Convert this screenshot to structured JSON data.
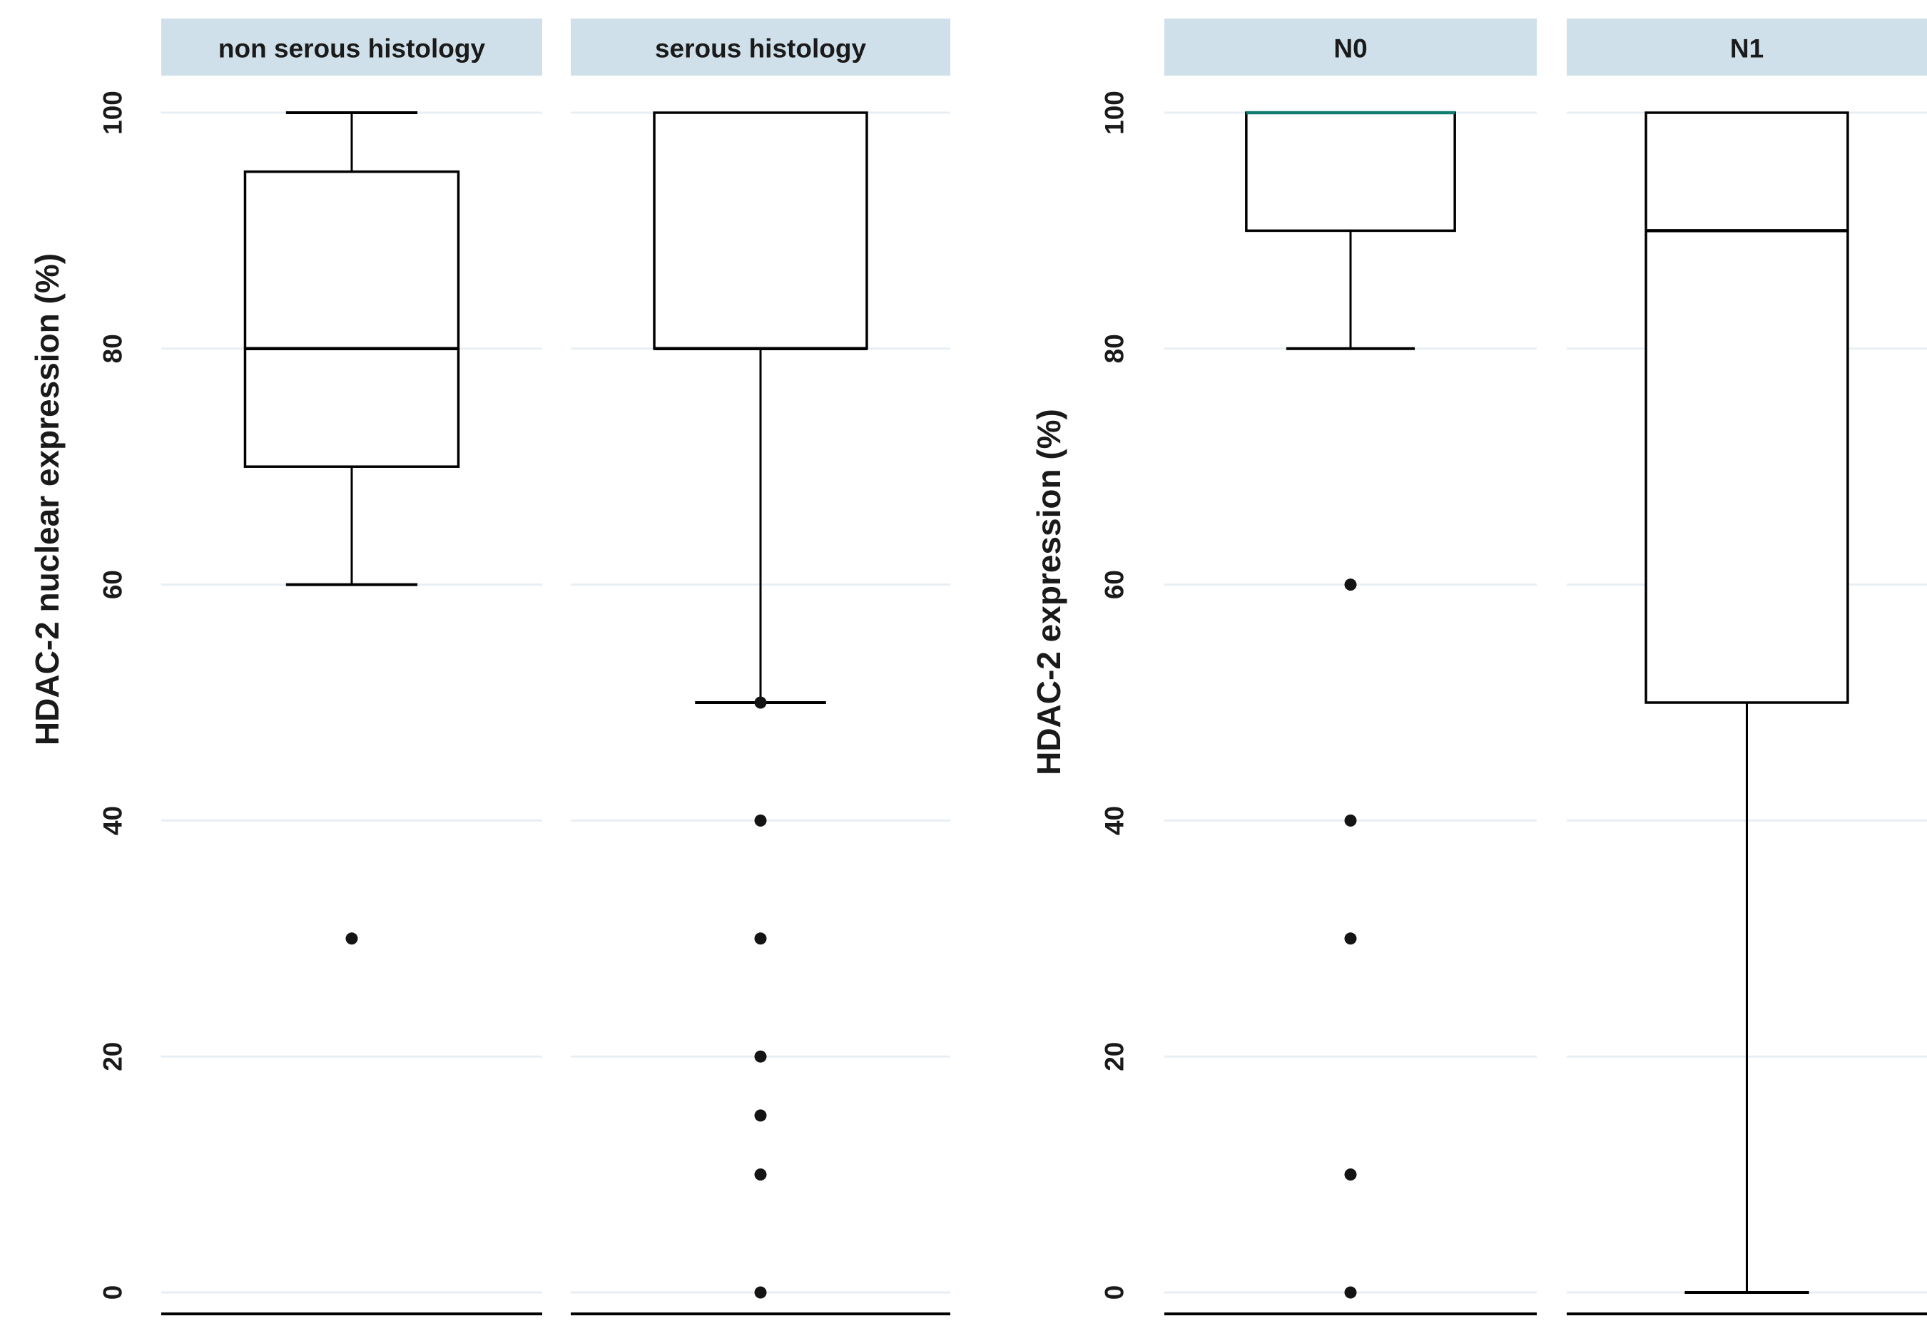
{
  "figure": {
    "background": "#ffffff"
  },
  "chart_data": {
    "type": "box",
    "layout_hint": "two side-by-side panels of Stata-style grouped boxplots; light-blue group header bars on top, horizontal gridlines, rotated y tick labels, separate bottom axis line per group",
    "yticks": [
      0,
      20,
      40,
      60,
      80,
      100
    ],
    "ylim": [
      0,
      100
    ],
    "panels": [
      {
        "ylabel": "HDAC-2 nuclear expression (%)",
        "groups": [
          {
            "label": "non serous histology",
            "q1": 70,
            "median": 80,
            "q3": 95,
            "whisker_low": 60,
            "whisker_high": 100,
            "outliers": [
              30
            ],
            "median_color": "#000000"
          },
          {
            "label": "serous histology",
            "q1": 80,
            "median": 80,
            "q3": 100,
            "whisker_low": 50,
            "whisker_high": 100,
            "outliers": [
              50,
              40,
              30,
              20,
              15,
              10,
              0
            ],
            "median_color": "#000000"
          }
        ]
      },
      {
        "ylabel": "HDAC-2 expression (%)",
        "groups": [
          {
            "label": "N0",
            "q1": 90,
            "median": 100,
            "q3": 100,
            "whisker_low": 80,
            "whisker_high": 100,
            "outliers": [
              60,
              40,
              30,
              10,
              0
            ],
            "median_color": "#0f7d70"
          },
          {
            "label": "N1",
            "q1": 50,
            "median": 90,
            "q3": 100,
            "whisker_low": 0,
            "whisker_high": 100,
            "outliers": [],
            "median_color": "#000000"
          }
        ]
      }
    ],
    "styles": {
      "header_bg": "#cfe0ea",
      "header_text": "#1a1a1a",
      "grid_color": "#e7eff4",
      "box_stroke": "#000000",
      "box_fill": "#ffffff",
      "outlier_fill": "#141414",
      "tick_text": "#1a1a1a",
      "axis_line": "#000000"
    }
  }
}
